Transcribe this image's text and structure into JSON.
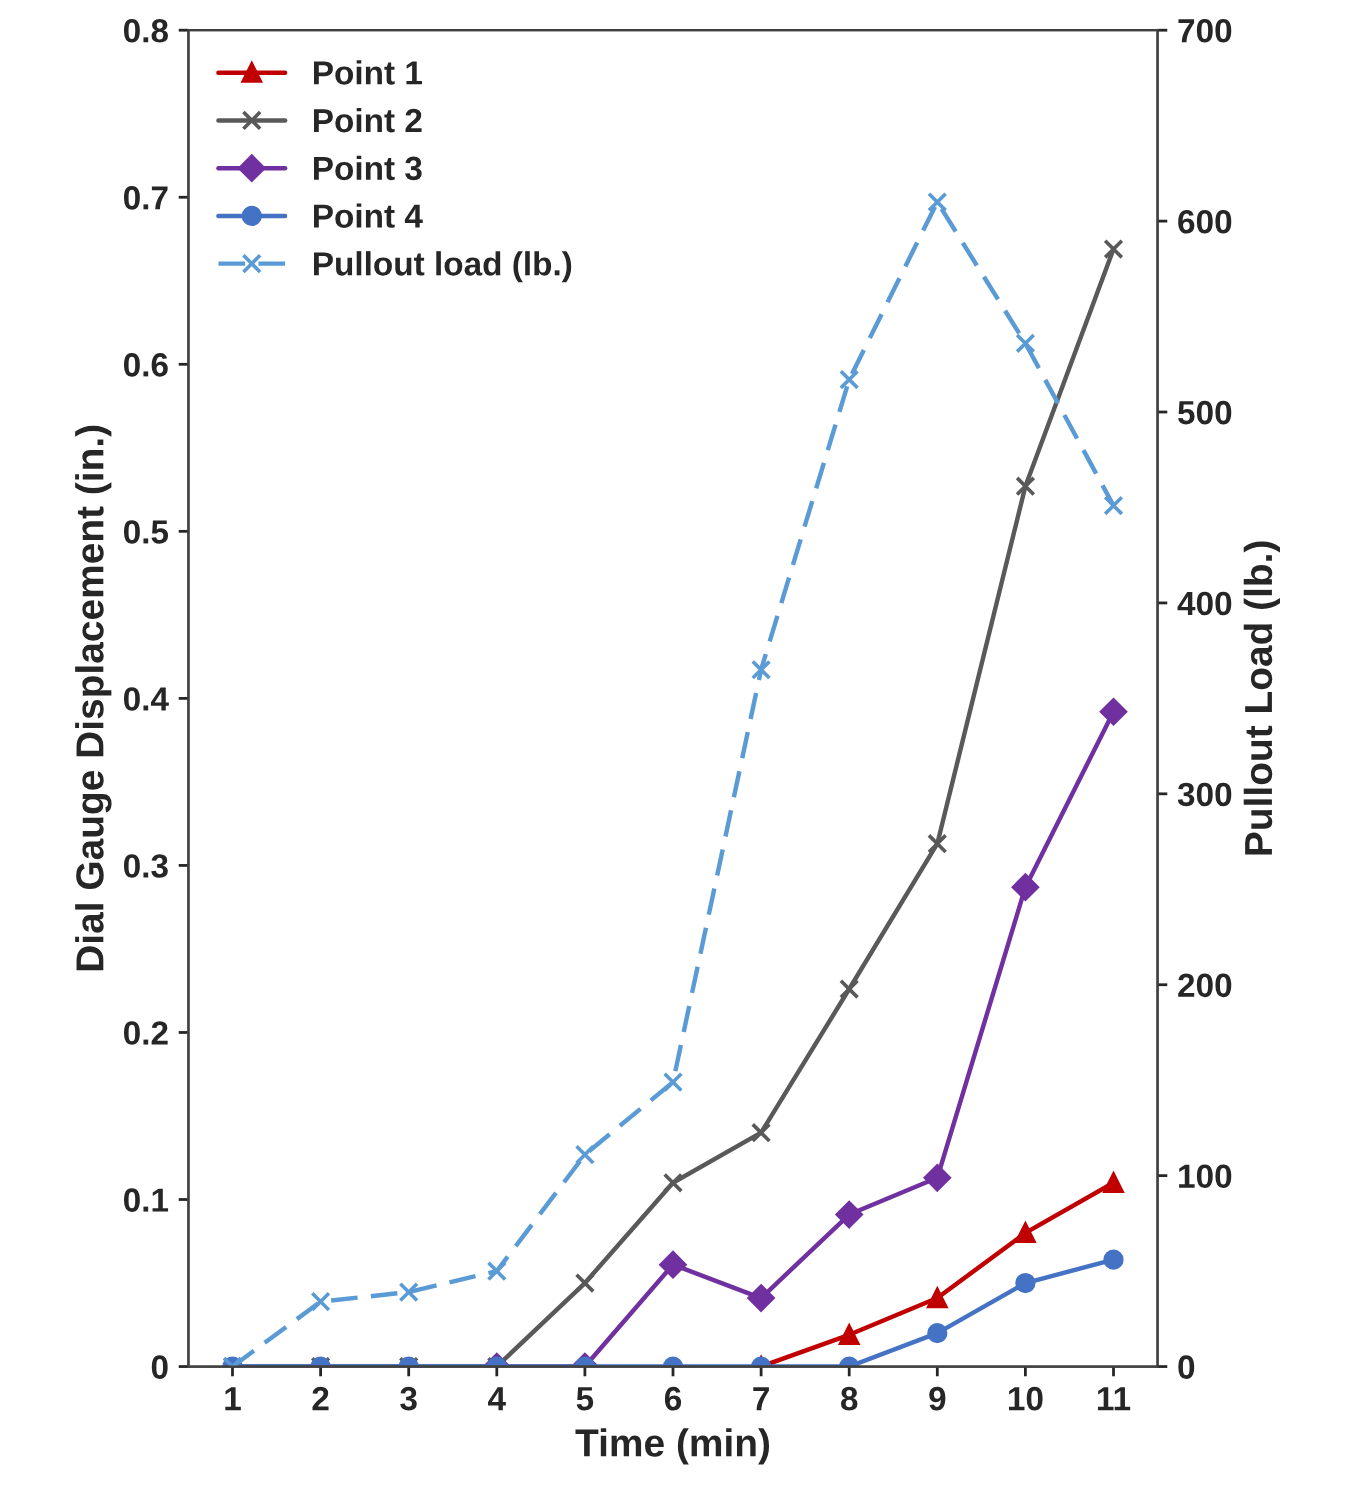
{
  "chart_data": {
    "type": "line",
    "xlabel": "Time (min)",
    "ylabel": "Dial Gauge Displacement (in.)",
    "y2label": "Pullout Load (lb.)",
    "categories": [
      "1",
      "2",
      "3",
      "4",
      "5",
      "6",
      "7",
      "8",
      "9",
      "10",
      "11"
    ],
    "ylim": [
      0,
      0.8
    ],
    "yticks": [
      {
        "value": 0,
        "label": "0"
      },
      0.1,
      0.2,
      0.3,
      0.4,
      0.5,
      0.6,
      0.7,
      0.8
    ],
    "y2lim": [
      0,
      700
    ],
    "y2ticks": [
      0,
      100,
      200,
      300,
      400,
      500,
      600,
      700
    ],
    "grid": false,
    "legend": "top left",
    "series": [
      {
        "name": "Point 1",
        "color": "#c00000",
        "marker": "triangle",
        "line_style": "solid",
        "values": [
          null,
          null,
          null,
          null,
          null,
          null,
          0,
          0.019,
          0.041,
          0.08,
          0.11
        ]
      },
      {
        "name": "Point 2",
        "color": "#595959",
        "marker": "cross",
        "line_style": "solid",
        "values": [
          0,
          0,
          0,
          0,
          0.05,
          0.11,
          0.14,
          0.226,
          0.313,
          0.527,
          0.669
        ]
      },
      {
        "name": "Point 3",
        "color": "#7030a0",
        "marker": "diamond",
        "line_style": "solid",
        "values": [
          null,
          null,
          null,
          0,
          0,
          0.061,
          0.041,
          0.091,
          0.113,
          0.287,
          0.392
        ]
      },
      {
        "name": "Point 4",
        "color": "#4472c4",
        "marker": "circle",
        "line_style": "solid",
        "values": [
          0,
          0,
          0,
          0,
          0,
          0,
          0,
          0,
          0.02,
          0.05,
          0.064
        ]
      },
      {
        "name": "Pullout load (lb.)",
        "color": "#5b9bd5",
        "marker": "cross",
        "line_style": "dashed",
        "axis": "y2",
        "values": [
          0,
          34,
          39,
          50,
          111,
          149,
          365,
          517,
          610,
          536,
          451
        ]
      }
    ]
  }
}
